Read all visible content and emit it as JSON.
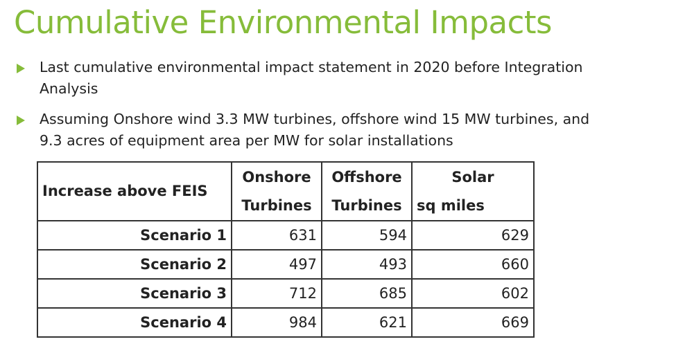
{
  "header": {
    "title": "Cumulative Environmental Impacts"
  },
  "bullets": [
    [
      "Last cumulative environmental impact statement in 2020 before Integration",
      "Analysis"
    ],
    [
      "Assuming Onshore wind 3.3 MW turbines, offshore wind 15 MW turbines, and",
      "9.3 acres of equipment area per MW for solar installations"
    ]
  ],
  "table": {
    "header": [
      [
        "Increase above FEIS"
      ],
      [
        "Onshore",
        "Turbines"
      ],
      [
        "Offshore",
        "Turbines"
      ],
      [
        "Solar",
        "sq miles"
      ]
    ],
    "rows": [
      [
        "Scenario 1",
        631,
        594,
        629
      ],
      [
        "Scenario 2",
        497,
        493,
        660
      ],
      [
        "Scenario 3",
        712,
        685,
        602
      ],
      [
        "Scenario 4",
        984,
        621,
        669
      ]
    ]
  }
}
